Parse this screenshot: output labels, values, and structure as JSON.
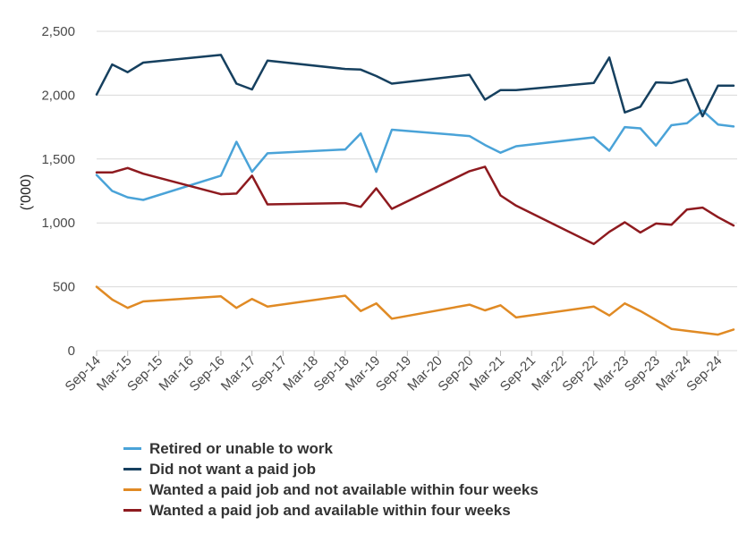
{
  "chart_data": {
    "type": "line",
    "ylabel": "('000)",
    "ylim": [
      0,
      2500
    ],
    "yticks": [
      0,
      500,
      1000,
      1500,
      2000,
      2500
    ],
    "ytick_labels": [
      "0",
      "500",
      "1,000",
      "1,500",
      "2,000",
      "2,500"
    ],
    "xticks": [
      "Sep-14",
      "Mar-15",
      "Sep-15",
      "Mar-16",
      "Sep-16",
      "Mar-17",
      "Sep-17",
      "Mar-18",
      "Sep-18",
      "Mar-19",
      "Sep-19",
      "Mar-20",
      "Sep-20",
      "Mar-21",
      "Sep-21",
      "Mar-22",
      "Sep-22",
      "Mar-23",
      "Sep-23",
      "Mar-24",
      "Sep-24"
    ],
    "grid": "horizontal",
    "legend_position": "bottom",
    "x": [
      "Sep-14",
      "Dec-14",
      "Mar-15",
      "Jun-15",
      "Sep-16",
      "Dec-16",
      "Mar-17",
      "Jun-17",
      "Sep-18",
      "Dec-18",
      "Mar-19",
      "Jun-19",
      "Sep-20",
      "Dec-20",
      "Mar-21",
      "Jun-21",
      "Sep-22",
      "Dec-22",
      "Mar-23",
      "Jun-23",
      "Sep-23",
      "Dec-23",
      "Mar-24",
      "Jun-24",
      "Sep-24",
      "Dec-24"
    ],
    "series": [
      {
        "name": "Retired or unable to work",
        "color": "#4aa3d8",
        "values": [
          1375,
          1250,
          1200,
          1180,
          1370,
          1635,
          1400,
          1545,
          1575,
          1700,
          1400,
          1730,
          1680,
          1610,
          1550,
          1600,
          1670,
          1565,
          1750,
          1740,
          1605,
          1765,
          1780,
          1880,
          1770,
          1755
        ]
      },
      {
        "name": "Did not want a paid job",
        "color": "#16405f",
        "values": [
          2005,
          2240,
          2180,
          2255,
          2315,
          2090,
          2045,
          2270,
          2205,
          2200,
          2150,
          2090,
          2160,
          1965,
          2040,
          2040,
          2095,
          2295,
          1865,
          1910,
          2100,
          2095,
          2125,
          1835,
          2075,
          2075
        ]
      },
      {
        "name": "Wanted a paid job and not available within four weeks",
        "color": "#e08a24",
        "values": [
          500,
          400,
          335,
          385,
          425,
          335,
          405,
          345,
          430,
          310,
          370,
          250,
          360,
          315,
          355,
          260,
          345,
          275,
          370,
          310,
          240,
          170,
          155,
          140,
          125,
          165
        ]
      },
      {
        "name": "Wanted a paid job and available within four weeks",
        "color": "#8e1a1f",
        "values": [
          1395,
          1395,
          1430,
          1385,
          1225,
          1230,
          1370,
          1145,
          1155,
          1125,
          1270,
          1110,
          1405,
          1440,
          1215,
          1135,
          835,
          930,
          1005,
          925,
          995,
          985,
          1105,
          1120,
          1045,
          980
        ]
      }
    ]
  }
}
